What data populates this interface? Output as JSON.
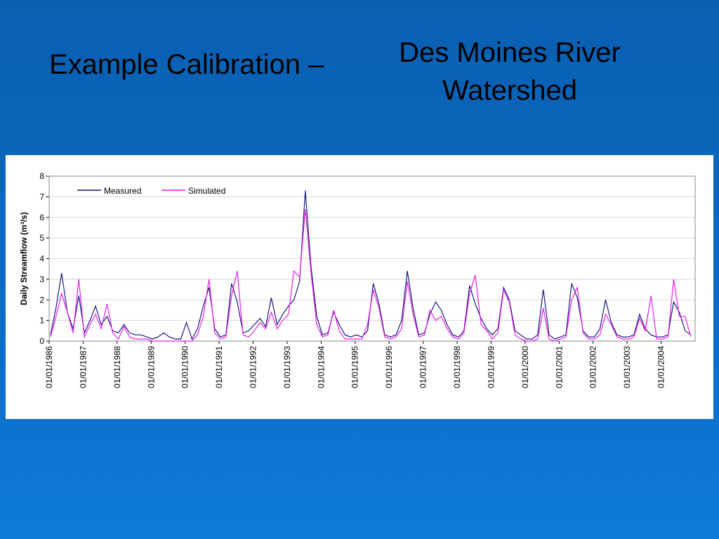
{
  "title": "Example Calibration –",
  "subtitle": "Des Moines River Watershed",
  "chart_data": {
    "type": "line",
    "y_label": "Daily Streamflow (m³/s)",
    "x": [
      "1986-01-15",
      "1986-03-15",
      "1986-05-15",
      "1986-07-15",
      "1986-09-15",
      "1986-11-15",
      "1987-01-15",
      "1987-03-15",
      "1987-05-15",
      "1987-07-15",
      "1987-09-15",
      "1987-11-15",
      "1988-01-15",
      "1988-03-15",
      "1988-05-15",
      "1988-07-15",
      "1988-09-15",
      "1988-11-15",
      "1989-01-15",
      "1989-03-15",
      "1989-05-15",
      "1989-07-15",
      "1989-09-15",
      "1989-11-15",
      "1990-01-15",
      "1990-03-15",
      "1990-05-15",
      "1990-07-15",
      "1990-09-15",
      "1990-11-15",
      "1991-01-15",
      "1991-03-15",
      "1991-05-15",
      "1991-07-15",
      "1991-09-15",
      "1991-11-15",
      "1992-01-15",
      "1992-03-15",
      "1992-05-15",
      "1992-07-15",
      "1992-09-15",
      "1992-11-15",
      "1993-01-15",
      "1993-03-15",
      "1993-05-15",
      "1993-07-15",
      "1993-09-15",
      "1993-11-15",
      "1994-01-15",
      "1994-03-15",
      "1994-05-15",
      "1994-07-15",
      "1994-09-15",
      "1994-11-15",
      "1995-01-15",
      "1995-03-15",
      "1995-05-15",
      "1995-07-15",
      "1995-09-15",
      "1995-11-15",
      "1996-01-15",
      "1996-03-15",
      "1996-05-15",
      "1996-07-15",
      "1996-09-15",
      "1996-11-15",
      "1997-01-15",
      "1997-03-15",
      "1997-05-15",
      "1997-07-15",
      "1997-09-15",
      "1997-11-15",
      "1998-01-15",
      "1998-03-15",
      "1998-05-15",
      "1998-07-15",
      "1998-09-15",
      "1998-11-15",
      "1999-01-15",
      "1999-03-15",
      "1999-05-15",
      "1999-07-15",
      "1999-09-15",
      "1999-11-15",
      "2000-01-15",
      "2000-03-15",
      "2000-05-15",
      "2000-07-15",
      "2000-09-15",
      "2000-11-15",
      "2001-01-15",
      "2001-03-15",
      "2001-05-15",
      "2001-07-15",
      "2001-09-15",
      "2001-11-15",
      "2002-01-15",
      "2002-03-15",
      "2002-05-15",
      "2002-07-15",
      "2002-09-15",
      "2002-11-15",
      "2003-01-15",
      "2003-03-15",
      "2003-05-15",
      "2003-07-15",
      "2003-09-15",
      "2003-11-15",
      "2004-01-15",
      "2004-03-15",
      "2004-05-15",
      "2004-07-15",
      "2004-09-15",
      "2004-11-15"
    ],
    "series": [
      {
        "name": "Measured",
        "color": "#1a1a80",
        "values": [
          0.3,
          1.6,
          3.3,
          1.4,
          0.6,
          2.2,
          0.4,
          1.0,
          1.7,
          0.8,
          1.2,
          0.5,
          0.4,
          0.8,
          0.4,
          0.3,
          0.3,
          0.2,
          0.1,
          0.2,
          0.4,
          0.2,
          0.1,
          0.1,
          0.9,
          0.1,
          0.6,
          1.7,
          2.6,
          0.6,
          0.2,
          0.3,
          2.8,
          1.9,
          0.4,
          0.5,
          0.8,
          1.1,
          0.7,
          2.1,
          0.8,
          1.3,
          1.7,
          2.0,
          2.9,
          7.3,
          3.6,
          1.2,
          0.3,
          0.4,
          1.4,
          0.8,
          0.3,
          0.2,
          0.3,
          0.2,
          0.5,
          2.8,
          1.8,
          0.3,
          0.2,
          0.3,
          1.0,
          3.4,
          1.6,
          0.3,
          0.4,
          1.3,
          1.9,
          1.5,
          0.8,
          0.3,
          0.2,
          0.5,
          2.7,
          1.8,
          1.1,
          0.6,
          0.3,
          0.6,
          2.6,
          2.0,
          0.5,
          0.3,
          0.1,
          0.1,
          0.3,
          2.5,
          0.3,
          0.1,
          0.2,
          0.3,
          2.8,
          2.1,
          0.5,
          0.2,
          0.2,
          0.6,
          2.0,
          0.9,
          0.3,
          0.2,
          0.2,
          0.3,
          1.3,
          0.6,
          0.3,
          0.2,
          0.2,
          0.3,
          1.9,
          1.4,
          0.5,
          0.3
        ]
      },
      {
        "name": "Simulated",
        "color": "#e81ee8",
        "values": [
          0.2,
          1.2,
          2.3,
          1.4,
          0.4,
          3.0,
          0.2,
          0.8,
          1.3,
          0.6,
          1.8,
          0.4,
          0.1,
          0.7,
          0.2,
          0.1,
          0.1,
          0.1,
          0,
          0,
          0,
          0,
          0,
          0,
          0,
          0,
          0.3,
          1.2,
          3.0,
          0.4,
          0.1,
          0.2,
          2.2,
          3.4,
          0.3,
          0.2,
          0.5,
          0.9,
          0.6,
          1.4,
          0.6,
          1.0,
          1.3,
          3.4,
          3.1,
          6.4,
          3.3,
          0.8,
          0.2,
          0.3,
          1.5,
          0.5,
          0.1,
          0.1,
          0.1,
          0.1,
          0.8,
          2.5,
          1.6,
          0.2,
          0.1,
          0.2,
          0.6,
          2.9,
          1.3,
          0.2,
          0.3,
          1.5,
          1.0,
          1.2,
          0.6,
          0.2,
          0.1,
          0.4,
          2.3,
          3.2,
          0.8,
          0.5,
          0.1,
          0.4,
          2.5,
          1.9,
          0.3,
          0.1,
          0,
          0,
          0.1,
          1.6,
          0.1,
          0,
          0.1,
          0.2,
          2.0,
          2.6,
          0.4,
          0.1,
          0.1,
          0.3,
          1.3,
          0.8,
          0.2,
          0.1,
          0.1,
          0.2,
          1.1,
          0.5,
          2.2,
          0.1,
          0.1,
          0.2,
          3.0,
          1.2,
          1.2,
          0.2
        ]
      }
    ],
    "xlim": [
      "1986-01-01",
      "2005-01-01"
    ],
    "xticks": [
      {
        "value": "1986-01-01",
        "label": "01/01/1986"
      },
      {
        "value": "1987-01-01",
        "label": "01/01/1987"
      },
      {
        "value": "1988-01-01",
        "label": "01/01/1988"
      },
      {
        "value": "1989-01-01",
        "label": "01/01/1989"
      },
      {
        "value": "1990-01-01",
        "label": "01/01/1990"
      },
      {
        "value": "1991-01-01",
        "label": "01/01/1991"
      },
      {
        "value": "1992-01-01",
        "label": "01/01/1992"
      },
      {
        "value": "1993-01-01",
        "label": "01/01/1993"
      },
      {
        "value": "1994-01-01",
        "label": "01/01/1994"
      },
      {
        "value": "1995-01-01",
        "label": "01/01/1995"
      },
      {
        "value": "1996-01-01",
        "label": "01/01/1996"
      },
      {
        "value": "1997-01-01",
        "label": "01/01/1997"
      },
      {
        "value": "1998-01-01",
        "label": "01/01/1998"
      },
      {
        "value": "1999-01-01",
        "label": "01/01/1999"
      },
      {
        "value": "2000-01-01",
        "label": "01/01/2000"
      },
      {
        "value": "2001-01-01",
        "label": "01/01/2001"
      },
      {
        "value": "2002-01-01",
        "label": "01/01/2002"
      },
      {
        "value": "2003-01-01",
        "label": "01/01/2003"
      },
      {
        "value": "2004-01-01",
        "label": "01/01/2004"
      }
    ],
    "ylim": [
      0,
      8
    ],
    "yticks": [
      0,
      1,
      2,
      3,
      4,
      5,
      6,
      7,
      8
    ],
    "grid": true,
    "legend": "top-left"
  }
}
